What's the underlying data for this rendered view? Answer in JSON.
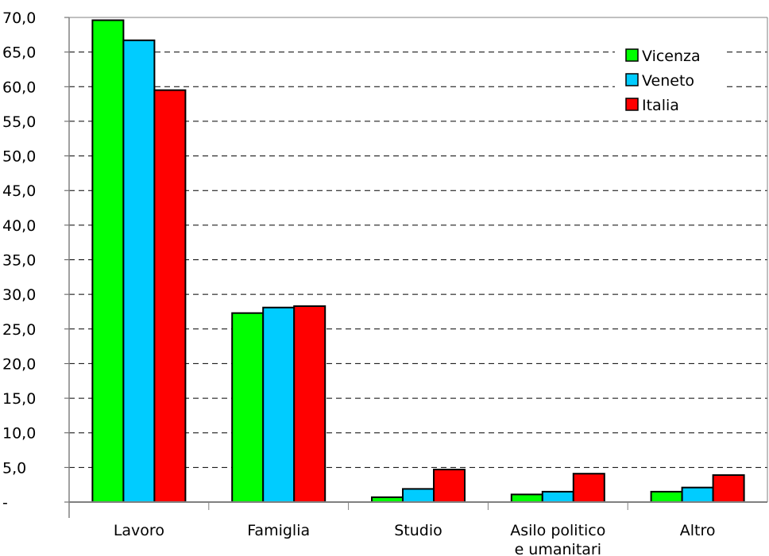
{
  "chart_data": {
    "type": "bar",
    "categories": [
      "Lavoro",
      "Famiglia",
      "Studio",
      "Asilo politico e umanitari",
      "Altro"
    ],
    "category_lines": [
      [
        "Lavoro"
      ],
      [
        "Famiglia"
      ],
      [
        "Studio"
      ],
      [
        "Asilo politico",
        "e umanitari"
      ],
      [
        "Altro"
      ]
    ],
    "series": [
      {
        "name": "Vicenza",
        "color": "#00ff00",
        "values": [
          69.6,
          27.3,
          0.7,
          1.1,
          1.5
        ]
      },
      {
        "name": "Veneto",
        "color": "#00ccff",
        "values": [
          66.7,
          28.1,
          1.9,
          1.5,
          2.1
        ]
      },
      {
        "name": "Italia",
        "color": "#ff0000",
        "values": [
          59.5,
          28.3,
          4.7,
          4.1,
          3.9
        ]
      }
    ],
    "ylim": [
      0,
      70
    ],
    "ytick_labels": [
      "-",
      "5,0",
      "10,0",
      "15,0",
      "20,0",
      "25,0",
      "30,0",
      "35,0",
      "40,0",
      "45,0",
      "50,0",
      "55,0",
      "60,0",
      "65,0",
      "70,0"
    ],
    "grid": true,
    "legend_position": "top-right",
    "title": "",
    "xlabel": "",
    "ylabel": ""
  }
}
